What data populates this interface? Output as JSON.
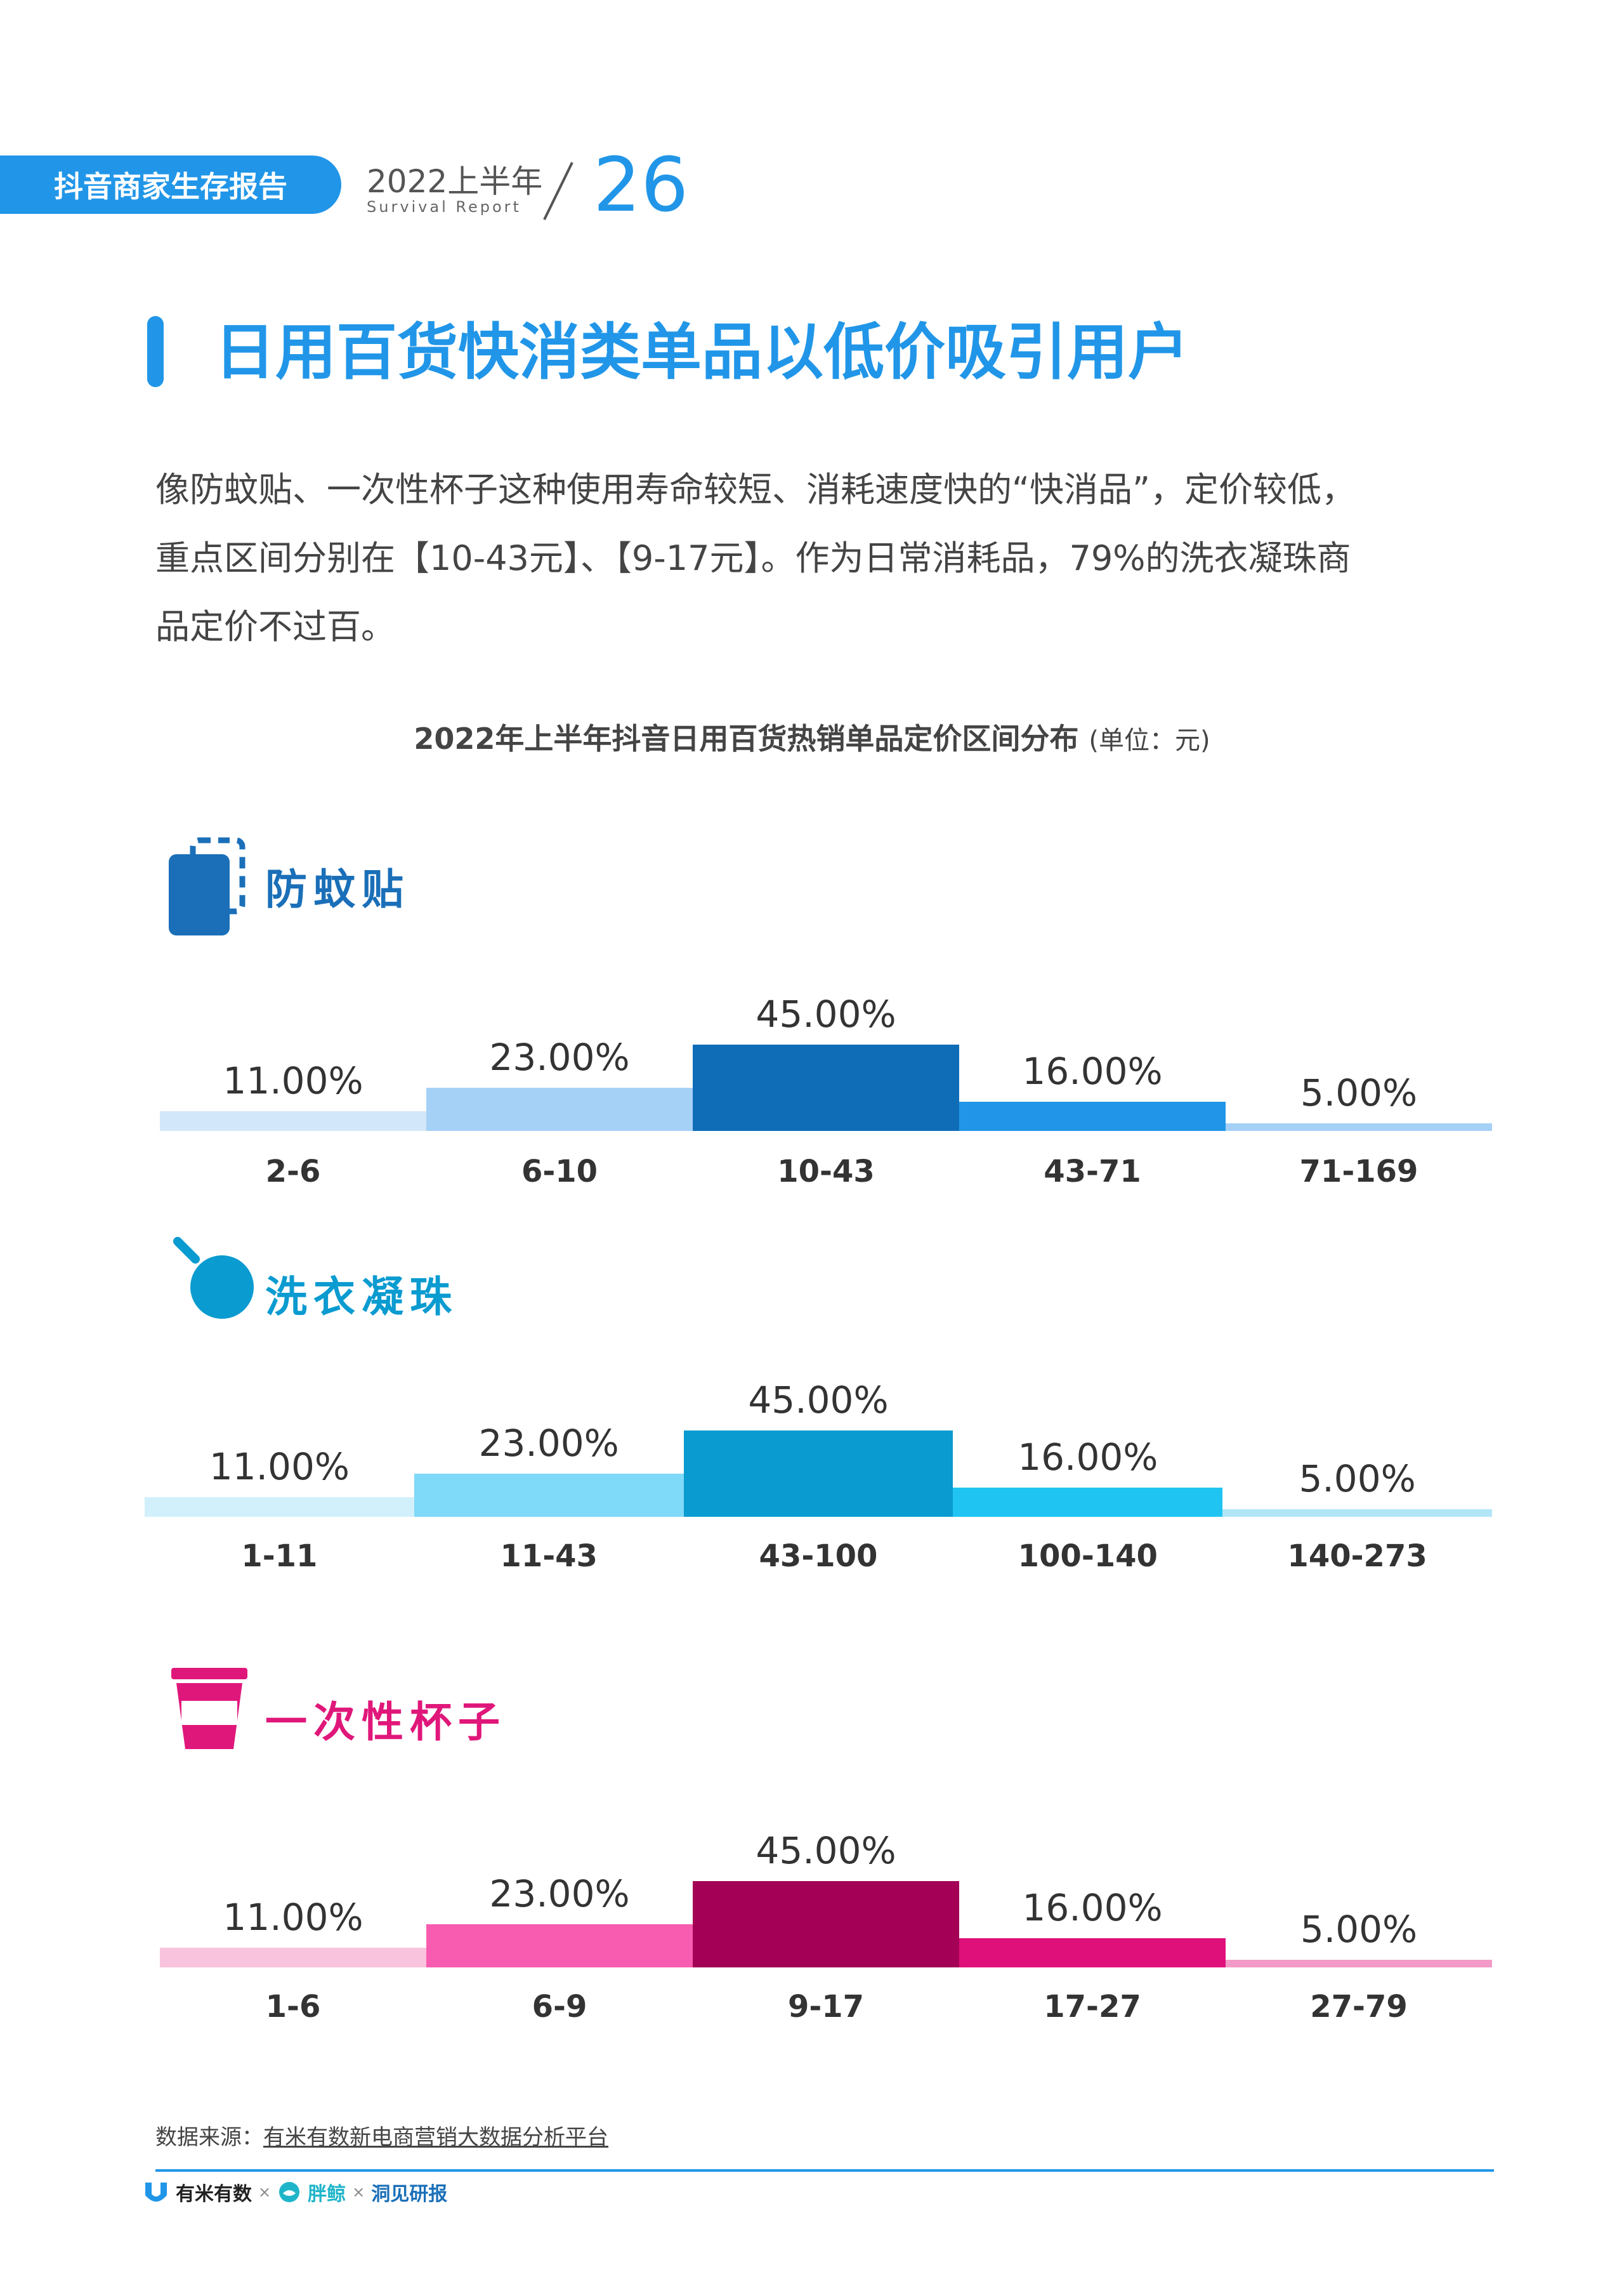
{
  "header": {
    "tag": "抖音商家生存报告",
    "year": "2022上半年",
    "subtitle": "Survival Report",
    "page_number": "26"
  },
  "title": "日用百货快消类单品以低价吸引用户",
  "paragraph": [
    "像防蚊贴、一次性杯子这种使用寿命较短、消耗速度快的“快消品”，定价较低，",
    "重点区间分别在【10-43元】、【9-17元】。作为日常消耗品，79%的洗衣凝珠商",
    "品定价不过百。"
  ],
  "chart_heading": {
    "title": "2022年上半年抖音日用百货热销单品定价区间分布",
    "unit": "(单位：元)"
  },
  "chart_data": [
    {
      "type": "bar",
      "name": "防蚊贴",
      "icon": "patch-icon",
      "color": "#1a6fb8",
      "categories": [
        "2-6",
        "6-10",
        "10-43",
        "43-71",
        "71-169"
      ],
      "values": [
        11,
        23,
        45,
        16,
        5
      ],
      "labels": [
        "11.00%",
        "23.00%",
        "45.00%",
        "16.00%",
        "5.00%"
      ],
      "bar_colors": [
        "#d3e7fa",
        "#a6d1f6",
        "#0f6db7",
        "#2196e8",
        "#a6d1f6"
      ]
    },
    {
      "type": "bar",
      "name": "洗衣凝珠",
      "icon": "laundry-pod-icon",
      "color": "#0a9bd0",
      "categories": [
        "1-11",
        "11-43",
        "43-100",
        "100-140",
        "140-273"
      ],
      "values": [
        11,
        23,
        45,
        16,
        5
      ],
      "labels": [
        "11.00%",
        "23.00%",
        "45.00%",
        "16.00%",
        "5.00%"
      ],
      "bar_colors": [
        "#d2f0fb",
        "#7fd9f8",
        "#0a9bd0",
        "#1fc4f2",
        "#b2e6f7"
      ]
    },
    {
      "type": "bar",
      "name": "一次性杯子",
      "icon": "cup-icon",
      "color": "#e0177a",
      "categories": [
        "1-6",
        "6-9",
        "9-17",
        "17-27",
        "27-79"
      ],
      "values": [
        11,
        23,
        45,
        16,
        5
      ],
      "labels": [
        "11.00%",
        "23.00%",
        "45.00%",
        "16.00%",
        "5.00%"
      ],
      "bar_colors": [
        "#f9c3dd",
        "#f75cb0",
        "#a30056",
        "#e0107a",
        "#f39ac8"
      ]
    }
  ],
  "footer": {
    "source_label": "数据来源：",
    "source_link": "有米有数新电商营销大数据分析平台",
    "logo1": "有米有数",
    "logo2": "胖鲸",
    "logo3": "洞见研报",
    "separator": "×"
  }
}
